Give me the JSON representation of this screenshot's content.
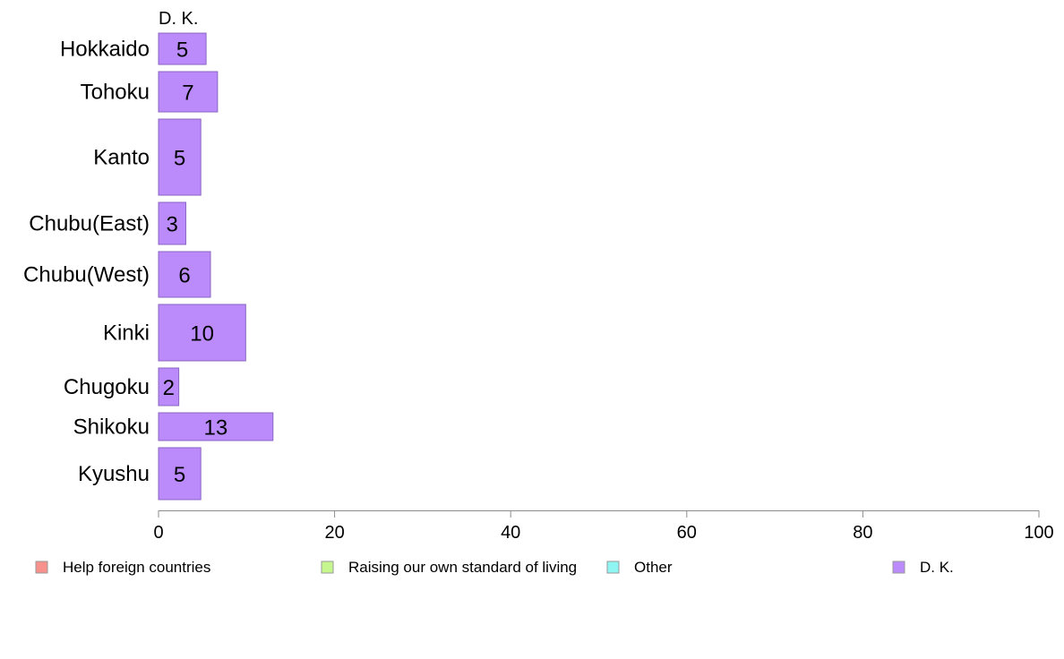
{
  "chart_data": {
    "type": "bar",
    "orientation": "horizontal",
    "stacked": true,
    "column_header": "D. K.",
    "categories": [
      "Hokkaido",
      "Tohoku",
      "Kanto",
      "Chubu(East)",
      "Chubu(West)",
      "Kinki",
      "Chugoku",
      "Shikoku",
      "Kyushu"
    ],
    "series": [
      {
        "name": "Help foreign countries",
        "color": "#f8918c",
        "values": [
          0,
          0,
          0,
          0,
          0,
          0,
          0,
          0,
          0
        ]
      },
      {
        "name": "Raising our own standard of living",
        "color": "#c6f78e",
        "values": [
          0,
          0,
          0,
          0,
          0,
          0,
          0,
          0,
          0
        ]
      },
      {
        "name": "Other",
        "color": "#8ef5f3",
        "values": [
          0,
          0,
          0,
          0,
          0,
          0,
          0,
          0,
          0
        ]
      },
      {
        "name": "D. K.",
        "color": "#bb8bfc",
        "values": [
          5.4,
          6.7,
          4.8,
          3.1,
          5.9,
          9.9,
          2.3,
          13.0,
          4.8
        ]
      }
    ],
    "data_labels": [
      "5",
      "7",
      "5",
      "3",
      "6",
      "10",
      "2",
      "13",
      "5"
    ],
    "xlim": [
      0,
      100
    ],
    "xticks": [
      0,
      20,
      40,
      60,
      80,
      100
    ],
    "legend_position": "bottom",
    "grid": false
  }
}
